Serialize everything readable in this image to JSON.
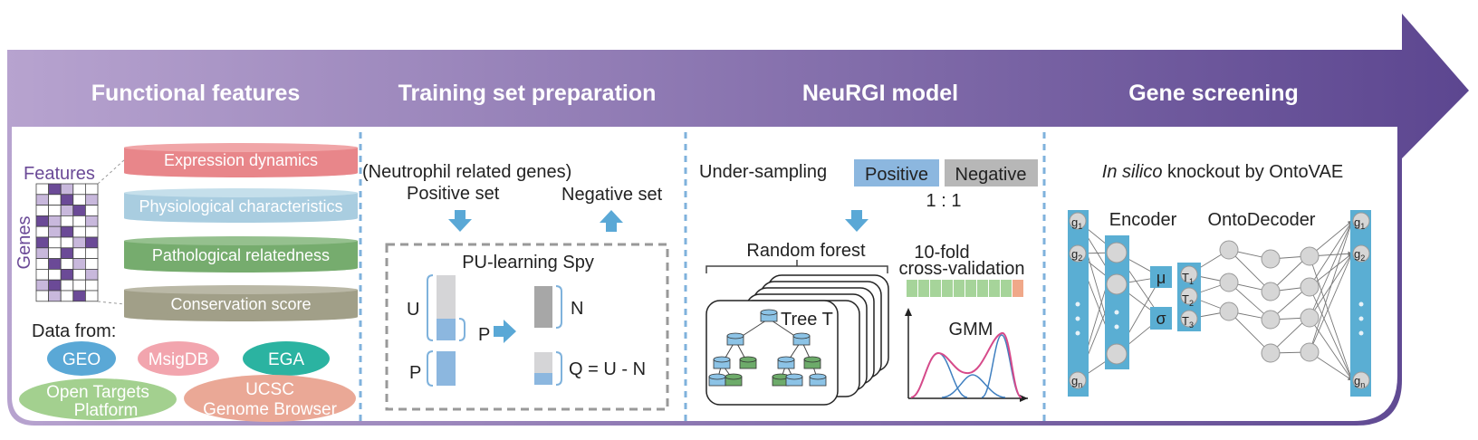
{
  "colors": {
    "arrow_start": "#b7a3cf",
    "arrow_end": "#5c4690",
    "divider": "#7fb2dc",
    "expression": "#e8868a",
    "physiological": "#a9cde0",
    "pathological": "#76ac6e",
    "conservation": "#a19f88",
    "geo": "#5aa8d6",
    "msigdb": "#f2a5ae",
    "ega": "#2bb3a1",
    "opentargets": "#a3d08f",
    "ucsc": "#eaa896",
    "positive": "#8cb7df",
    "negative": "#b7b7b7",
    "tree_blue": "#8cc3e6",
    "tree_green": "#6dab6a",
    "encoder": "#5aaed3"
  },
  "headers": {
    "functional": "Functional features",
    "training": "Training set preparation",
    "model": "NeuRGI model",
    "screening": "Gene screening"
  },
  "features": {
    "features_label": "Features",
    "genes_label": "Genes",
    "layers": [
      "Expression dynamics",
      "Physiological characteristics",
      "Pathological relatedness",
      "Conservation score"
    ],
    "data_from": "Data from:",
    "sources": {
      "geo": "GEO",
      "msigdb": "MsigDB",
      "ega": "EGA",
      "opentargets_1": "Open Targets",
      "opentargets_2": "Platform",
      "ucsc_1": "UCSC",
      "ucsc_2": "Genome Browser"
    }
  },
  "training": {
    "neutrophil": "(Neutrophil related genes)",
    "positive_set": "Positive set",
    "negative_set": "Negative set",
    "pu_title": "PU-learning Spy",
    "u": "U",
    "p_arrow": "P",
    "n": "N",
    "p": "P",
    "q": "Q = U - N"
  },
  "model": {
    "under_sampling": "Under-sampling",
    "positive": "Positive",
    "negative": "Negative",
    "ratio": "1 : 1",
    "random_forest": "Random forest",
    "tree_t": "Tree T",
    "cv_1": "10-fold",
    "cv_2": "cross-validation",
    "gmm": "GMM"
  },
  "screening": {
    "title_italic": "In silico",
    "title_rest": " knockout by OntoVAE",
    "encoder": "Encoder",
    "decoder": "OntoDecoder",
    "g": "g",
    "sub_1": "1",
    "sub_2": "2",
    "sub_n": "n",
    "mu": "μ",
    "sigma": "σ",
    "t": "T",
    "sub_3": "3"
  }
}
